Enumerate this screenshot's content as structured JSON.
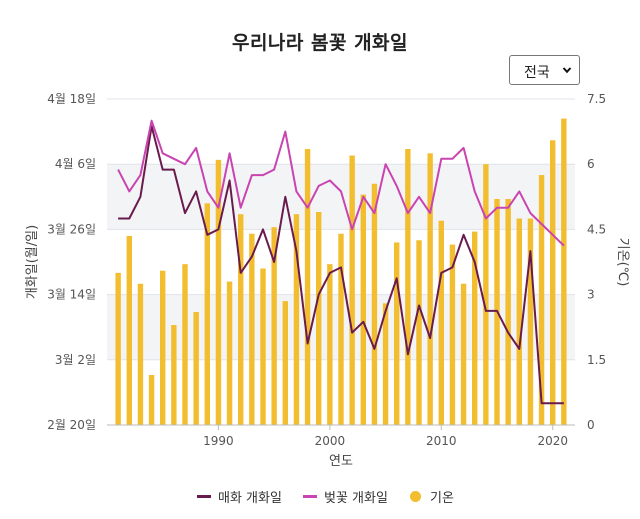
{
  "page_title": "우리나라 봄꽃 개화일",
  "region_select": {
    "selected": "전국",
    "icon": "chevron-down-icon"
  },
  "colors": {
    "maehwa": "#6a1b4d",
    "beotkkot": "#c944b0",
    "temp": "#f2be2f",
    "grid": "#dfe3ea",
    "plot_bg": "#f3f4f6"
  },
  "chart_data": {
    "type": "bar+line",
    "title": "우리나라 봄꽃 개화일",
    "xlabel": "연도",
    "ylabel_left": "개화일(월/일)",
    "ylabel_right": "기온(℃)",
    "x": [
      1981,
      1982,
      1983,
      1984,
      1985,
      1986,
      1987,
      1988,
      1989,
      1990,
      1991,
      1992,
      1993,
      1994,
      1995,
      1996,
      1997,
      1998,
      1999,
      2000,
      2001,
      2002,
      2003,
      2004,
      2005,
      2006,
      2007,
      2008,
      2009,
      2010,
      2011,
      2012,
      2013,
      2014,
      2015,
      2016,
      2017,
      2018,
      2019,
      2020,
      2021
    ],
    "x_ticks": [
      1990,
      2000,
      2010,
      2020
    ],
    "left_axis": {
      "ticks": [
        "2월 20일",
        "3월 2일",
        "3월 14일",
        "3월 26일",
        "4월 6일",
        "4월 18일"
      ],
      "tick_values": [
        0,
        12,
        24,
        36,
        48,
        60
      ],
      "range_days_since_feb20": [
        0,
        60
      ]
    },
    "right_axis": {
      "ticks": [
        "0",
        "1.5",
        "3",
        "4.5",
        "6",
        "7.5"
      ],
      "range": [
        0,
        7.5
      ]
    },
    "series": [
      {
        "name": "매화 개화일",
        "type": "line",
        "unit": "days since Feb 20",
        "values": [
          38,
          38,
          42,
          55,
          47,
          47,
          39,
          43,
          35,
          36,
          45,
          28,
          31,
          36,
          30,
          42,
          32,
          15,
          24,
          28,
          29,
          17,
          19,
          14,
          21,
          27,
          13,
          22,
          16,
          28,
          29,
          35,
          30,
          21,
          21,
          17,
          14,
          32,
          4,
          4,
          4
        ]
      },
      {
        "name": "벚꽃 개화일",
        "type": "line",
        "unit": "days since Feb 20",
        "values": [
          47,
          43,
          46,
          56,
          50,
          49,
          48,
          51,
          43,
          40,
          50,
          40,
          46,
          46,
          47,
          54,
          43,
          40,
          44,
          45,
          43,
          36,
          42,
          39,
          48,
          44,
          39,
          42,
          39,
          49,
          49,
          51,
          43,
          38,
          40,
          40,
          43,
          39,
          37,
          35,
          33
        ]
      },
      {
        "name": "기온",
        "type": "bar",
        "unit": "℃",
        "values": [
          3.5,
          4.35,
          3.25,
          1.15,
          3.55,
          2.3,
          3.7,
          2.6,
          5.1,
          6.1,
          3.3,
          4.85,
          4.4,
          3.6,
          4.55,
          2.85,
          4.85,
          6.35,
          4.9,
          3.7,
          4.4,
          6.2,
          5.3,
          5.55,
          2.8,
          4.2,
          6.35,
          4.25,
          6.25,
          4.7,
          4.15,
          3.25,
          4.45,
          6.0,
          5.2,
          5.2,
          4.75,
          4.75,
          5.75,
          6.55,
          7.05
        ]
      }
    ],
    "legend": [
      "매화 개화일",
      "벚꽃 개화일",
      "기온"
    ],
    "legend_position": "bottom",
    "grid": true
  }
}
